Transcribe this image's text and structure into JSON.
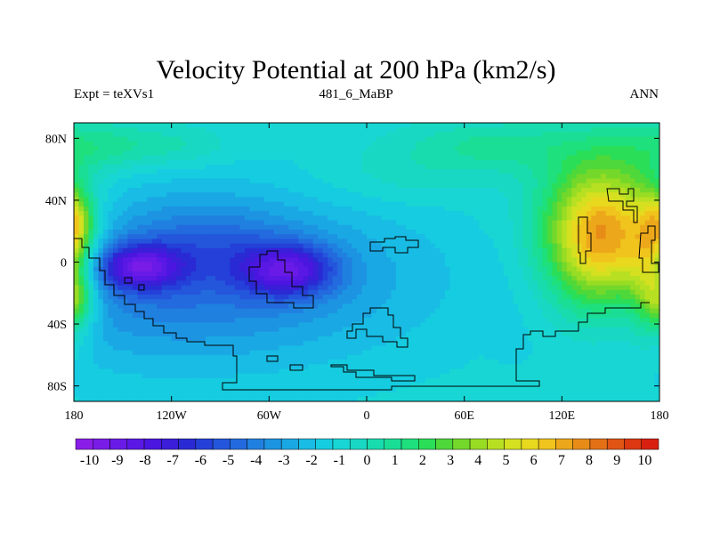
{
  "chart_data": {
    "type": "heatmap",
    "title": "Velocity Potential at 200 hPa (km2/s)",
    "left_string": "Expt = teXVs1",
    "center_string": "481_6_MaBP",
    "right_string": "ANN",
    "x_ticks": [
      "180",
      "120W",
      "60W",
      "0",
      "60E",
      "120E",
      "180"
    ],
    "y_ticks": [
      "80N",
      "40N",
      "0",
      "40S",
      "80S"
    ],
    "xlim": [
      -180,
      180
    ],
    "ylim": [
      -90,
      90
    ],
    "colorbar": {
      "labels": [
        "-10",
        "-9",
        "-8",
        "-7",
        "-6",
        "-5",
        "-4",
        "-3",
        "-2",
        "-1",
        "0",
        "1",
        "2",
        "3",
        "4",
        "5",
        "6",
        "7",
        "8",
        "9",
        "10"
      ],
      "min": -10.5,
      "max": 10.5,
      "colors": [
        "#8a1ee8",
        "#7a1ce8",
        "#6a1ae6",
        "#5a18e4",
        "#4a16e0",
        "#3a1ed8",
        "#2a2ad4",
        "#2440d8",
        "#2456dc",
        "#226ade",
        "#2080e0",
        "#1c94e2",
        "#1aa8e4",
        "#18bce4",
        "#16cce0",
        "#18d6d4",
        "#18d8c4",
        "#18dcae",
        "#1ade96",
        "#1ee07c",
        "#2ade58",
        "#4ed83a",
        "#74d82a",
        "#98dc24",
        "#b8e022",
        "#d4e020",
        "#e8d81e",
        "#f0c41c",
        "#eca81a",
        "#e88c18",
        "#e47016",
        "#e05414",
        "#dc3812",
        "#d82010"
      ]
    },
    "features": {
      "low_centers": [
        {
          "lon": -140,
          "lat": -3,
          "value": -9.5
        },
        {
          "lon": -48,
          "lat": -5,
          "value": -9.3
        }
      ],
      "high_centers": [
        {
          "lon": 145,
          "lat": 22,
          "value": 9.5
        }
      ]
    }
  }
}
